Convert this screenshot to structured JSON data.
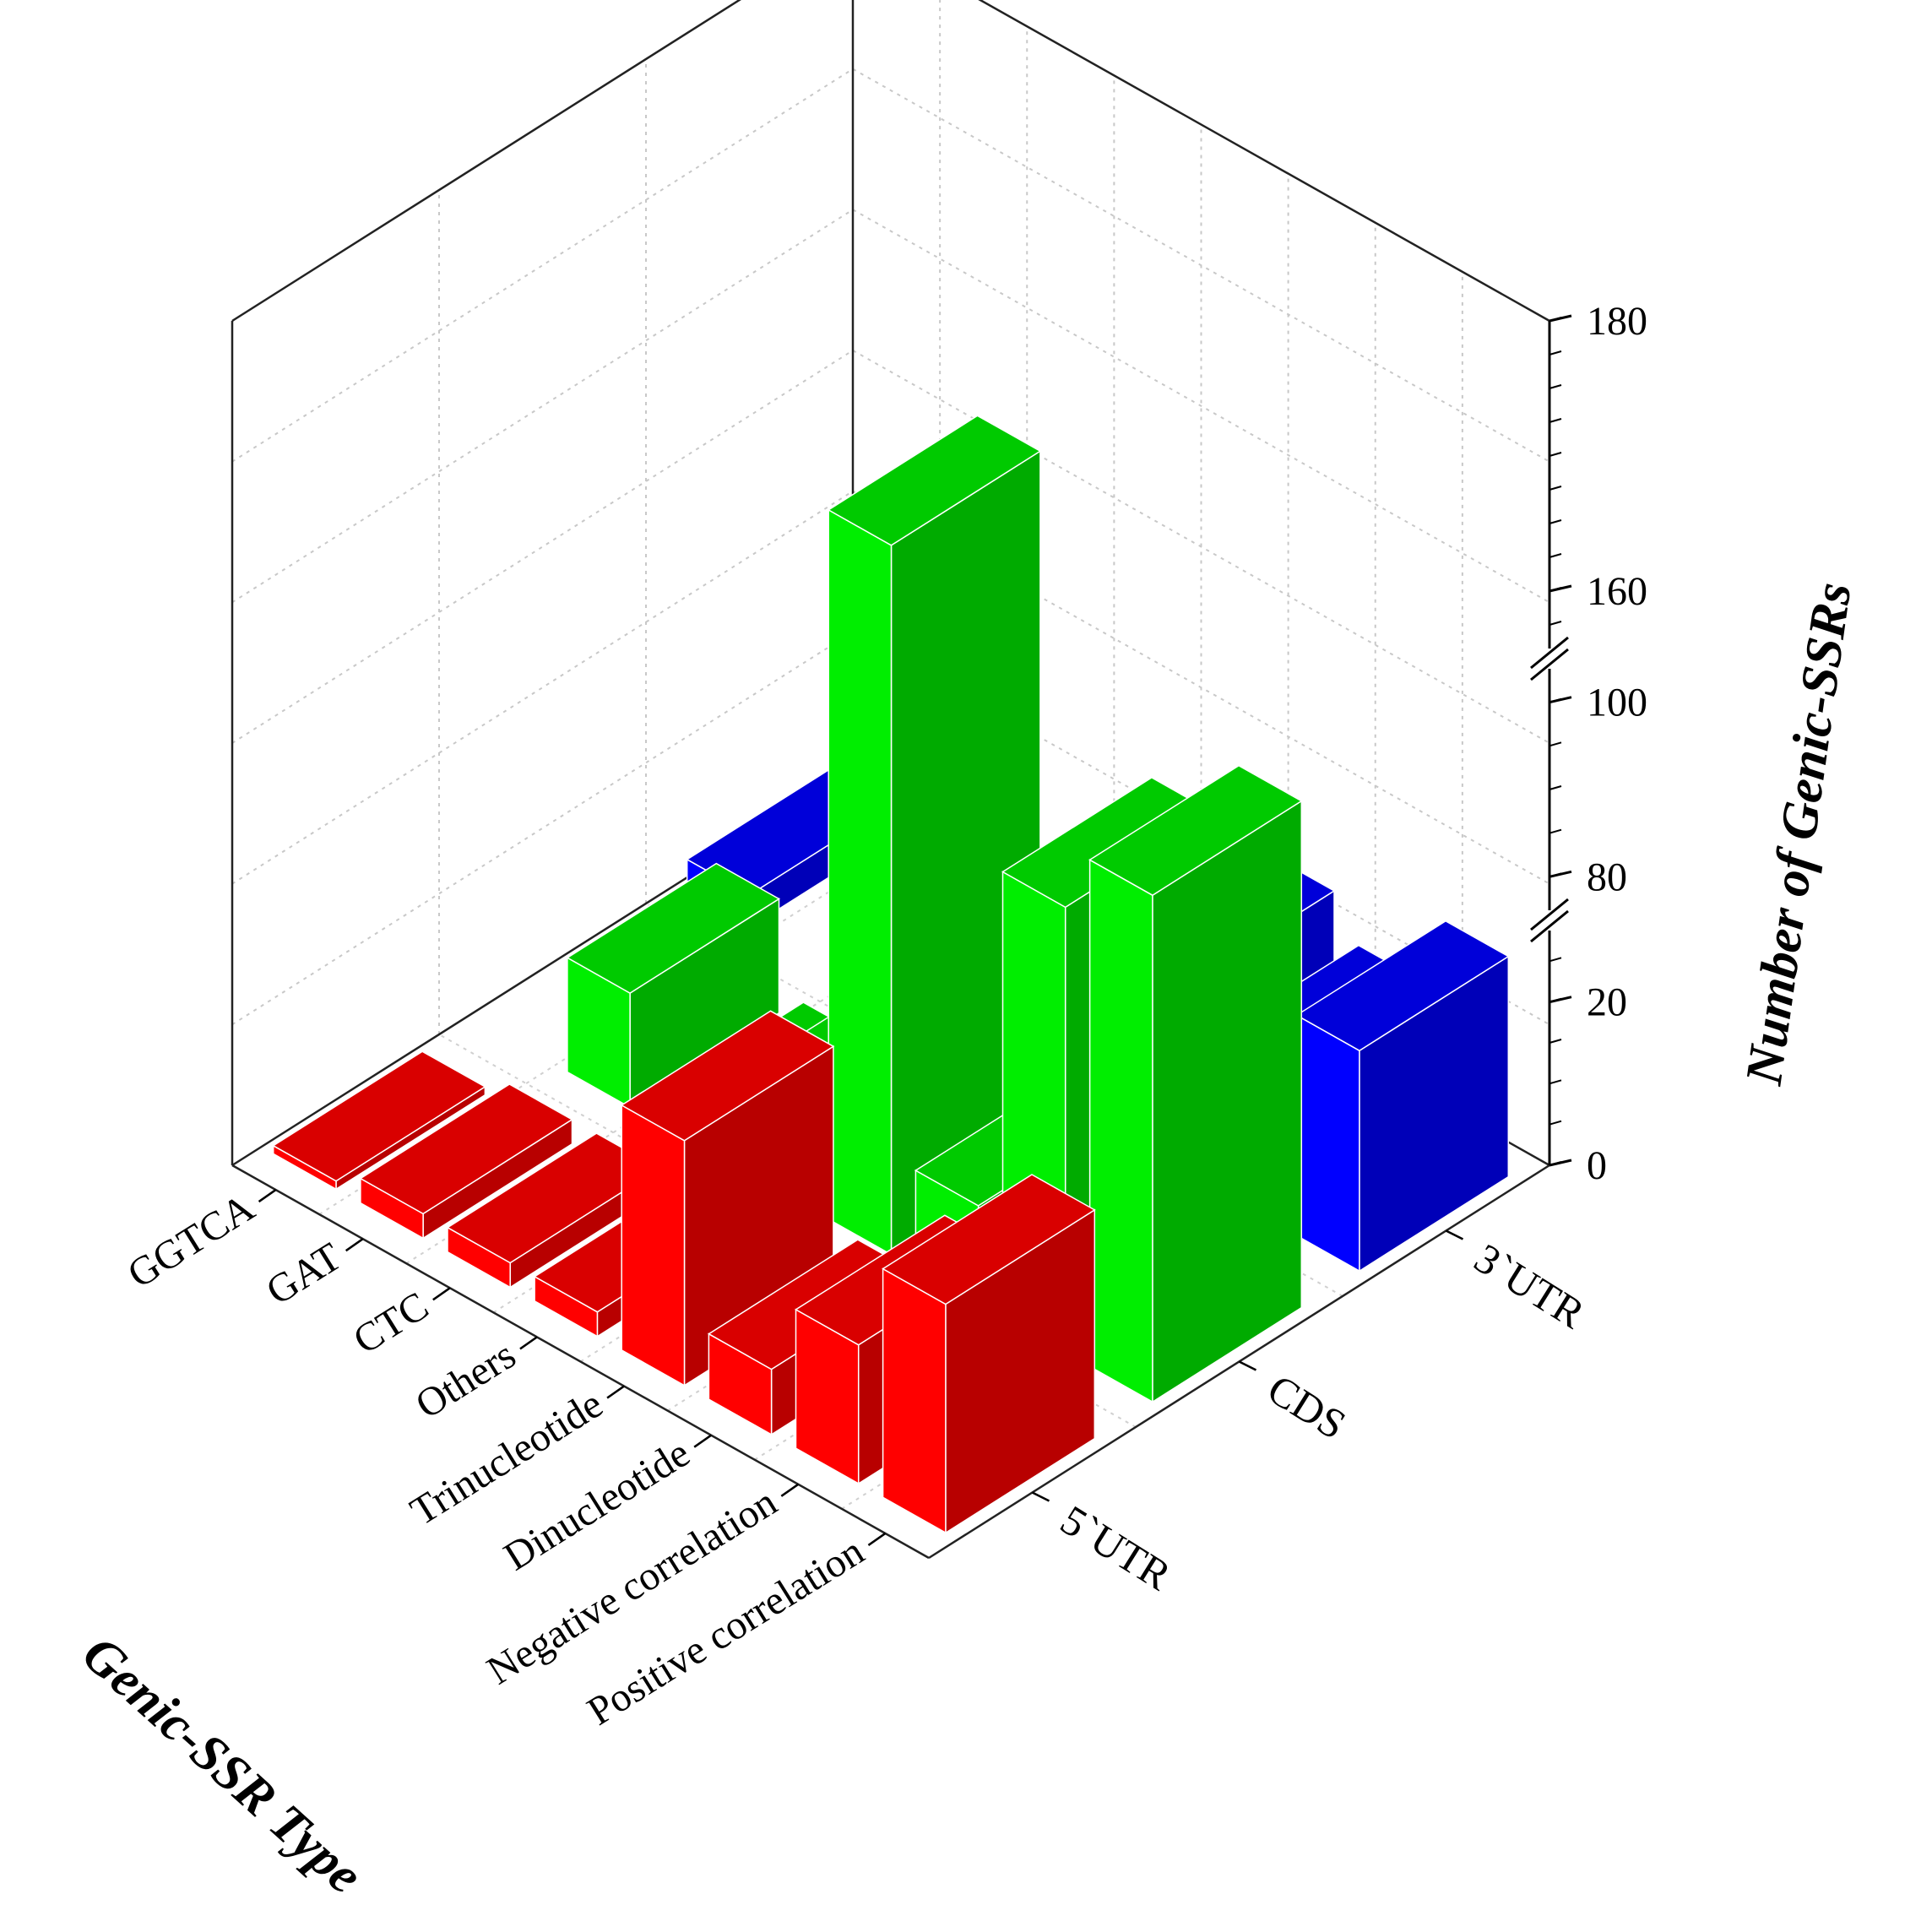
{
  "chart_data": {
    "type": "bar3d",
    "x_axis_title": "Genic-SSR Type",
    "y_axis_title": "Number of Genic-SSRs",
    "categories": [
      "GGTCA",
      "GAT",
      "CTC",
      "Others",
      "Trinucleotide",
      "Dinucleotide",
      "Negative correlation",
      "Positive correlation"
    ],
    "regions": [
      "5`UTR",
      "CDS",
      "3`UTR"
    ],
    "z_ticks": [
      0,
      20,
      80,
      100,
      160,
      180
    ],
    "z_axis_breaks": [
      [
        30,
        75
      ],
      [
        105,
        155
      ]
    ],
    "series": [
      {
        "name": "5`UTR",
        "color": "#ff0000",
        "values": [
          1,
          3,
          3,
          3,
          36,
          8,
          17,
          28
        ]
      },
      {
        "name": "CDS",
        "color": "#00ee00",
        "values": [
          0,
          14,
          3,
          12,
          170,
          12,
          98,
          107
        ]
      },
      {
        "name": "3`UTR",
        "color": "#0000ff",
        "values": [
          4,
          0,
          0,
          0,
          14,
          23,
          18,
          27
        ]
      }
    ]
  }
}
